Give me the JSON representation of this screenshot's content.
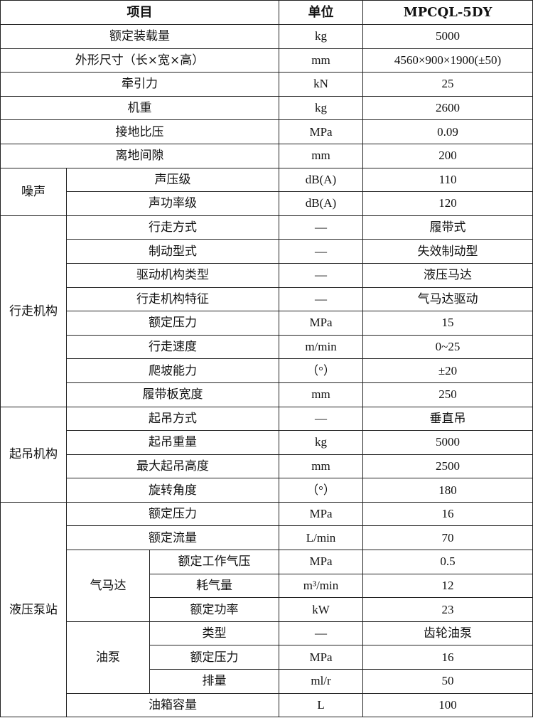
{
  "table": {
    "headers": [
      "项目",
      "单位",
      "MPCQL-5DY"
    ],
    "sections": [
      {
        "group": null,
        "rows": [
          {
            "item": "额定装载量",
            "unit": "kg",
            "value": "5000"
          },
          {
            "item": "外形尺寸（长×宽×高）",
            "unit": "mm",
            "value": "4560×900×1900(±50)"
          },
          {
            "item": "牵引力",
            "unit": "kN",
            "value": "25"
          },
          {
            "item": "机重",
            "unit": "kg",
            "value": "2600"
          },
          {
            "item": "接地比压",
            "unit": "MPa",
            "value": "0.09"
          },
          {
            "item": "离地间隙",
            "unit": "mm",
            "value": "200"
          }
        ]
      },
      {
        "group": "噪声",
        "blocks": [
          {
            "subgroup": null,
            "rows": [
              {
                "item": "声压级",
                "unit": "dB(A)",
                "value": "110"
              },
              {
                "item": "声功率级",
                "unit": "dB(A)",
                "value": "120"
              }
            ]
          }
        ]
      },
      {
        "group": "行走机构",
        "blocks": [
          {
            "subgroup": null,
            "rows": [
              {
                "item": "行走方式",
                "unit": "—",
                "value": "履带式"
              },
              {
                "item": "制动型式",
                "unit": "—",
                "value": "失效制动型"
              },
              {
                "item": "驱动机构类型",
                "unit": "—",
                "value": "液压马达"
              },
              {
                "item": "行走机构特征",
                "unit": "—",
                "value": "气马达驱动"
              },
              {
                "item": "额定压力",
                "unit": "MPa",
                "value": "15"
              },
              {
                "item": "行走速度",
                "unit": "m/min",
                "value": "0~25"
              },
              {
                "item": "爬坡能力",
                "unit": "（°）",
                "value": "±20"
              },
              {
                "item": "履带板宽度",
                "unit": "mm",
                "value": "250"
              }
            ]
          }
        ]
      },
      {
        "group": "起吊机构",
        "blocks": [
          {
            "subgroup": null,
            "rows": [
              {
                "item": "起吊方式",
                "unit": "—",
                "value": "垂直吊"
              },
              {
                "item": "起吊重量",
                "unit": "kg",
                "value": "5000"
              },
              {
                "item": "最大起吊高度",
                "unit": "mm",
                "value": "2500"
              },
              {
                "item": "旋转角度",
                "unit": "（°）",
                "value": "180"
              }
            ]
          }
        ]
      },
      {
        "group": "液压泵站",
        "blocks": [
          {
            "subgroup": null,
            "rows": [
              {
                "item": "额定压力",
                "unit": "MPa",
                "value": "16"
              },
              {
                "item": "额定流量",
                "unit": "L/min",
                "value": "70"
              }
            ]
          },
          {
            "subgroup": "气马达",
            "rows": [
              {
                "item": "额定工作气压",
                "unit": "MPa",
                "value": "0.5"
              },
              {
                "item": "耗气量",
                "unit": "m³/min",
                "value": "12"
              },
              {
                "item": "额定功率",
                "unit": "kW",
                "value": "23"
              }
            ]
          },
          {
            "subgroup": "油泵",
            "rows": [
              {
                "item": "类型",
                "unit": "—",
                "value": "齿轮油泵"
              },
              {
                "item": "额定压力",
                "unit": "MPa",
                "value": "16"
              },
              {
                "item": "排量",
                "unit": "ml/r",
                "value": "50"
              }
            ]
          },
          {
            "subgroup": null,
            "rows": [
              {
                "item": "油箱容量",
                "unit": "L",
                "value": "100"
              }
            ]
          }
        ]
      }
    ]
  }
}
